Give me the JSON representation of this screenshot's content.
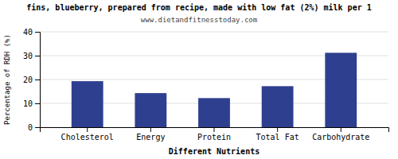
{
  "chart_data": {
    "type": "bar",
    "title": "fins, blueberry, prepared from recipe, made with low fat (2%) milk per 1",
    "subtitle": "www.dietandfitnesstoday.com",
    "categories": [
      "Cholesterol",
      "Energy",
      "Protein",
      "Total Fat",
      "Carbohydrate"
    ],
    "values": [
      19.3,
      14.3,
      12.2,
      17.2,
      31.2
    ],
    "color": "#2e3f8f",
    "xlabel": "Different Nutrients",
    "ylabel": "Percentage of RDH (%)",
    "ylim": [
      0,
      40
    ],
    "yticks": [
      0,
      10,
      20,
      30,
      40
    ],
    "grid": true
  }
}
